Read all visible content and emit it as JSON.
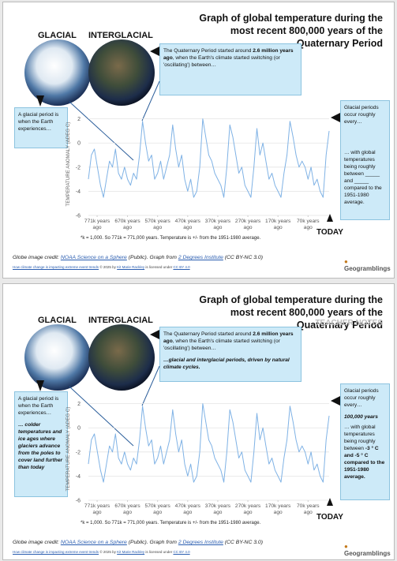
{
  "worksheet": {
    "title": "Graph of global temperature during the most recent 800,000 years of the Quaternary Period",
    "glacial": "GLACIAL",
    "interglacial": "INTERGLACIAL",
    "footnote": "*k = 1,000. So 771k = 771,000 years. Temperature is +/- from the 1951-1980 average.",
    "credit": [
      "Globe image credit: ",
      "NOAA Science on a Sphere",
      " (Public). Graph from ",
      "2 Degrees Institute",
      " (CC BY-NC 3.0)"
    ],
    "license": [
      "How climate change is impacting extreme event trends",
      " © 2025 by ",
      "Kit Marie Rackley",
      " is licensed under ",
      "CC BY 4.0"
    ],
    "logo": "Geogramblings",
    "slides": [
      {
        "intro": [
          "The Quaternary Period started around ",
          "2.6 million years ago",
          ", when the Earth's climate started switching (or 'oscillating') between…"
        ],
        "glacial_box": "A glacial period is when the Earth experiences…",
        "right_box": {
          "frequency": "Glacial periods occur roughly every…",
          "range": [
            "… with global temperatures being roughly between _____ and _____ compared to the 1951-1980 average."
          ]
        }
      },
      {
        "label": "TEACHER NOTES",
        "intro": [
          "The Quaternary Period started around ",
          "2.6 million years ago",
          ", when the Earth's climate started switching (or 'oscillating') between…"
        ],
        "intro_answer": "…glacial and interglacial periods, driven by natural climate cycles.",
        "glacial_box": "A glacial period is when the Earth experiences…",
        "glacial_answer": "… colder temperatures and ice ages where glaciers advance from the poles to cover land further than today",
        "right_box": {
          "frequency": "Glacial periods occur roughly every…",
          "frequency_answer": "100,000 years",
          "range": [
            "… with global temperatures being roughly between ",
            "-3 ° C and -5 ° C compared to the 1951-1980 average."
          ]
        }
      }
    ]
  },
  "chart_data": {
    "type": "line",
    "y_label": "TEMPERATURE ANOMALY (ΔDEG C)",
    "annotation": "TODAY",
    "color": "#7fb2e5",
    "grid": true,
    "x": [
      800,
      790,
      780,
      770,
      760,
      750,
      740,
      730,
      720,
      710,
      700,
      690,
      680,
      670,
      660,
      650,
      640,
      630,
      620,
      610,
      600,
      590,
      580,
      570,
      560,
      550,
      540,
      530,
      520,
      510,
      500,
      490,
      480,
      470,
      460,
      450,
      440,
      430,
      420,
      410,
      400,
      390,
      380,
      370,
      360,
      350,
      340,
      330,
      320,
      310,
      300,
      290,
      280,
      270,
      260,
      250,
      240,
      230,
      220,
      210,
      200,
      190,
      180,
      170,
      160,
      150,
      140,
      130,
      120,
      110,
      100,
      90,
      80,
      70,
      60,
      50,
      40,
      30,
      20,
      10,
      0
    ],
    "values": [
      -3,
      -1,
      -0.5,
      -2,
      -3.5,
      -4.5,
      -3,
      -1.5,
      -2,
      -0.5,
      -2.5,
      -3,
      -2,
      -3,
      -3.5,
      -2.5,
      -3,
      -1,
      1.8,
      0,
      -1.5,
      -1,
      -3,
      -2.5,
      -1.5,
      -3,
      -2,
      -1,
      1.5,
      -0.5,
      -2,
      -1,
      -3,
      -4,
      -3,
      -4.5,
      -4,
      -2,
      2,
      0.5,
      -1,
      -1.5,
      -2.5,
      -3,
      -3.5,
      -4.5,
      -2,
      1.5,
      0.5,
      -1,
      -2.5,
      -2,
      -3.5,
      -4,
      -4.5,
      -2,
      1.2,
      -1,
      0,
      -1.5,
      -3,
      -2.5,
      -3.5,
      -4,
      -4.5,
      -2.5,
      -1,
      1.8,
      0.5,
      -1,
      -2,
      -1.5,
      -2,
      -3,
      -2,
      -3.5,
      -3,
      -4,
      -4.5,
      -1,
      1
    ],
    "xlim": [
      800,
      0
    ],
    "ylim": [
      -6,
      2.5
    ],
    "xticks": [
      {
        "value": 771,
        "label": "771k years ago"
      },
      {
        "value": 670,
        "label": "670k years ago"
      },
      {
        "value": 570,
        "label": "570k years ago"
      },
      {
        "value": 470,
        "label": "470k years ago"
      },
      {
        "value": 370,
        "label": "370k years ago"
      },
      {
        "value": 270,
        "label": "270k years ago"
      },
      {
        "value": 170,
        "label": "170k years ago"
      },
      {
        "value": 70,
        "label": "70k years ago"
      }
    ],
    "yticks": [
      2,
      0,
      -2,
      -4,
      -6
    ]
  }
}
